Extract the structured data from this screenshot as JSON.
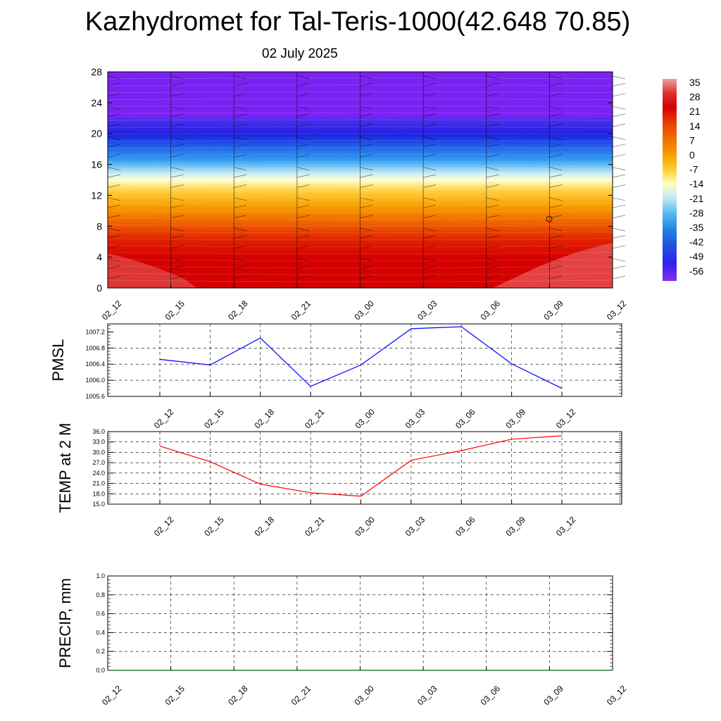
{
  "title": "Kazhydromet for Tal-Teris-1000(42.648 70.85)",
  "subtitle": "02 July 2025",
  "time_labels": [
    "02_12",
    "02_15",
    "02_18",
    "02_21",
    "03_00",
    "03_03",
    "03_06",
    "03_09",
    "03_12"
  ],
  "colors": {
    "pmsl_line": "#0000ff",
    "temp_line": "#ff0000",
    "precip_line": "#006400",
    "grid": "#000000"
  },
  "chart_data": [
    {
      "type": "heatmap",
      "name": "time-height cross section",
      "x": [
        "02_12",
        "02_15",
        "02_18",
        "02_21",
        "03_00",
        "03_03",
        "03_06",
        "03_09",
        "03_12"
      ],
      "ylim": [
        0,
        28
      ],
      "yticks": [
        0,
        4,
        8,
        12,
        16,
        20,
        24,
        28
      ],
      "colorbar": {
        "labels": [
          "35",
          "28",
          "21",
          "14",
          "7",
          "0",
          "-7",
          "-14",
          "-21",
          "-28",
          "-35",
          "-42",
          "-49",
          "-56"
        ],
        "stops": [
          "#f0a0a0",
          "#e03030",
          "#d40000",
          "#e84000",
          "#f07000",
          "#f8a000",
          "#ffd030",
          "#ffffc0",
          "#c0e8f8",
          "#50b8f0",
          "#2080e0",
          "#2050e0",
          "#3020f0",
          "#8030f0"
        ]
      },
      "bands": [
        {
          "top": 28,
          "bottom": 22,
          "value": "-56"
        },
        {
          "top": 22,
          "bottom": 19.5,
          "value": "-49"
        },
        {
          "top": 19.5,
          "bottom": 16,
          "value": "-28"
        },
        {
          "top": 16,
          "bottom": 13,
          "value": "-14"
        },
        {
          "top": 13,
          "bottom": 9,
          "value": "7"
        },
        {
          "top": 9,
          "bottom": 0,
          "value": "28"
        }
      ]
    },
    {
      "type": "line",
      "ylabel": "PMSL",
      "x": [
        "02_12",
        "02_15",
        "02_18",
        "02_21",
        "03_00",
        "03_03",
        "03_06",
        "03_09",
        "03_12"
      ],
      "ylim": [
        1005.6,
        1007.4
      ],
      "yticks": [
        "1005.6",
        "1006.0",
        "1006.4",
        "1006.8",
        "1007.2"
      ],
      "series": [
        {
          "values": [
            1006.52,
            1006.38,
            1007.05,
            1005.85,
            1006.38,
            1007.28,
            1007.33,
            1006.41,
            1005.8
          ]
        }
      ]
    },
    {
      "type": "line",
      "ylabel": "TEMP at 2 M",
      "x": [
        "02_12",
        "02_15",
        "02_18",
        "02_21",
        "03_00",
        "03_03",
        "03_06",
        "03_09",
        "03_12"
      ],
      "ylim": [
        15.0,
        36.0
      ],
      "yticks": [
        "15.0",
        "18.0",
        "21.0",
        "24.0",
        "27.0",
        "30.0",
        "33.0",
        "36.0"
      ],
      "series": [
        {
          "values": [
            31.8,
            27.3,
            20.8,
            18.3,
            17.3,
            27.7,
            30.5,
            33.8,
            34.8
          ]
        }
      ]
    },
    {
      "type": "line",
      "ylabel": "PRECIP, mm",
      "x": [
        "02_12",
        "02_15",
        "02_18",
        "02_21",
        "03_00",
        "03_03",
        "03_06",
        "03_09",
        "03_12"
      ],
      "ylim": [
        0.0,
        1.0
      ],
      "yticks": [
        "0.0",
        "0.2",
        "0.4",
        "0.6",
        "0.8",
        "1.0"
      ],
      "series": [
        {
          "values": [
            0,
            0,
            0,
            0,
            0,
            0,
            0,
            0,
            0
          ]
        }
      ]
    }
  ]
}
